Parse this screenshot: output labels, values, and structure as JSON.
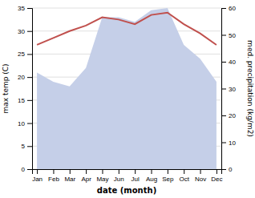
{
  "chart_data": {
    "type": "line",
    "categories": [
      "Jan",
      "Feb",
      "Mar",
      "Apr",
      "May",
      "Jun",
      "Jul",
      "Aug",
      "Sep",
      "Oct",
      "Nov",
      "Dec"
    ],
    "series": [
      {
        "type": "area",
        "color": "#c5cfe8",
        "values": [
          21.0,
          19.0,
          18.0,
          22.0,
          33.0,
          33.0,
          32.0,
          34.5,
          35.0,
          27.0,
          24.0,
          19.0
        ]
      },
      {
        "type": "line",
        "color": "#c0504d",
        "values": [
          27.0,
          28.5,
          30.0,
          31.2,
          33.0,
          32.5,
          31.5,
          33.5,
          34.0,
          31.5,
          29.5,
          27.0
        ]
      }
    ],
    "x_label": "date (month)",
    "y_label": "max temp (C)",
    "y2_label": "med. precipitation (kg/m2)",
    "ylim": [
      0,
      35
    ],
    "yticks": [
      0,
      5,
      10,
      15,
      20,
      25,
      30,
      35
    ],
    "y2lim": [
      0,
      60
    ],
    "y2ticks": [
      0,
      10,
      20,
      30,
      40,
      50,
      60
    ],
    "grid": true
  }
}
